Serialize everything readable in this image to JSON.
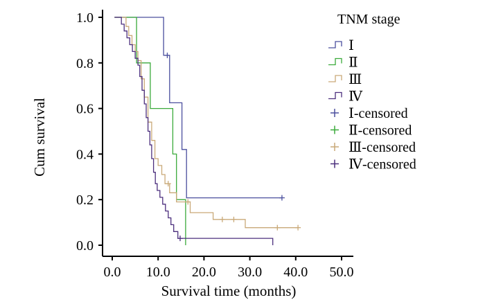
{
  "chart_data": {
    "type": "line",
    "subtype": "kaplan-meier",
    "xlabel": "Survival time (months)",
    "ylabel": "Cum survival",
    "xlim": [
      0,
      50
    ],
    "ylim": [
      0,
      1
    ],
    "x_ticks": [
      0,
      10,
      20,
      30,
      40,
      50
    ],
    "x_tick_labels": [
      "0.0",
      "10.0",
      "20.0",
      "30.0",
      "40.0",
      "50.0"
    ],
    "y_ticks": [
      0,
      0.2,
      0.4,
      0.6,
      0.8,
      1.0
    ],
    "y_tick_labels": [
      "0.0",
      "0.2",
      "0.4",
      "0.6",
      "0.8",
      "1.0"
    ],
    "grid": false,
    "legend": {
      "title": "TNM stage",
      "position": "top-right",
      "entries": [
        "Ⅰ",
        "Ⅱ",
        "Ⅲ",
        "Ⅳ",
        "Ⅰ-censored",
        "Ⅱ-censored",
        "Ⅲ-censored",
        "Ⅳ-censored"
      ]
    },
    "series": [
      {
        "name": "Ⅰ",
        "color": "#4a4f9e",
        "steps": [
          [
            0.5,
            1.0
          ],
          [
            11.2,
            1.0
          ],
          [
            11.2,
            0.833
          ],
          [
            12.5,
            0.833
          ],
          [
            12.5,
            0.625
          ],
          [
            15.2,
            0.625
          ],
          [
            15.2,
            0.42
          ],
          [
            16.2,
            0.42
          ],
          [
            16.2,
            0.208
          ],
          [
            37,
            0.208
          ]
        ],
        "censored": [
          [
            12.0,
            0.833
          ],
          [
            37,
            0.208
          ]
        ]
      },
      {
        "name": "Ⅱ",
        "color": "#3aaa3a",
        "steps": [
          [
            0.5,
            1.0
          ],
          [
            5.3,
            1.0
          ],
          [
            5.3,
            0.8
          ],
          [
            8.3,
            0.8
          ],
          [
            8.3,
            0.6
          ],
          [
            13.2,
            0.6
          ],
          [
            13.2,
            0.4
          ],
          [
            14.0,
            0.4
          ],
          [
            14.0,
            0.2
          ],
          [
            16.0,
            0.2
          ],
          [
            16.0,
            0.0
          ]
        ],
        "censored": []
      },
      {
        "name": "Ⅲ",
        "color": "#c9a978",
        "steps": [
          [
            0.5,
            1.0
          ],
          [
            3.0,
            1.0
          ],
          [
            3.0,
            0.96
          ],
          [
            3.6,
            0.96
          ],
          [
            3.6,
            0.92
          ],
          [
            4.3,
            0.92
          ],
          [
            4.3,
            0.88
          ],
          [
            5.0,
            0.88
          ],
          [
            5.0,
            0.85
          ],
          [
            5.6,
            0.85
          ],
          [
            5.6,
            0.81
          ],
          [
            6.3,
            0.81
          ],
          [
            6.3,
            0.73
          ],
          [
            7.0,
            0.73
          ],
          [
            7.0,
            0.65
          ],
          [
            7.8,
            0.65
          ],
          [
            7.8,
            0.54
          ],
          [
            8.6,
            0.54
          ],
          [
            8.6,
            0.46
          ],
          [
            9.3,
            0.46
          ],
          [
            9.3,
            0.38
          ],
          [
            10.0,
            0.38
          ],
          [
            10.0,
            0.35
          ],
          [
            10.8,
            0.35
          ],
          [
            10.8,
            0.31
          ],
          [
            11.5,
            0.31
          ],
          [
            11.5,
            0.27
          ],
          [
            12.5,
            0.27
          ],
          [
            12.5,
            0.23
          ],
          [
            14.0,
            0.23
          ],
          [
            14.0,
            0.19
          ],
          [
            17.0,
            0.19
          ],
          [
            17.0,
            0.143
          ],
          [
            22.0,
            0.143
          ],
          [
            22.0,
            0.113
          ],
          [
            29.0,
            0.113
          ],
          [
            29.0,
            0.077
          ],
          [
            40.5,
            0.077
          ]
        ],
        "censored": [
          [
            12.2,
            0.27
          ],
          [
            16.5,
            0.19
          ],
          [
            24.0,
            0.113
          ],
          [
            26.5,
            0.113
          ],
          [
            36.0,
            0.077
          ],
          [
            40.5,
            0.077
          ]
        ]
      },
      {
        "name": "Ⅳ",
        "color": "#4b2e7d",
        "steps": [
          [
            0.5,
            1.0
          ],
          [
            2.0,
            1.0
          ],
          [
            2.0,
            0.97
          ],
          [
            2.6,
            0.97
          ],
          [
            2.6,
            0.94
          ],
          [
            3.2,
            0.94
          ],
          [
            3.2,
            0.91
          ],
          [
            3.8,
            0.91
          ],
          [
            3.8,
            0.88
          ],
          [
            4.4,
            0.88
          ],
          [
            4.4,
            0.85
          ],
          [
            5.0,
            0.85
          ],
          [
            5.0,
            0.82
          ],
          [
            5.6,
            0.82
          ],
          [
            5.6,
            0.79
          ],
          [
            6.0,
            0.79
          ],
          [
            6.0,
            0.74
          ],
          [
            6.5,
            0.74
          ],
          [
            6.5,
            0.68
          ],
          [
            7.0,
            0.68
          ],
          [
            7.0,
            0.62
          ],
          [
            7.4,
            0.62
          ],
          [
            7.4,
            0.56
          ],
          [
            7.8,
            0.56
          ],
          [
            7.8,
            0.5
          ],
          [
            8.2,
            0.5
          ],
          [
            8.2,
            0.44
          ],
          [
            8.6,
            0.44
          ],
          [
            8.6,
            0.38
          ],
          [
            9.0,
            0.38
          ],
          [
            9.0,
            0.32
          ],
          [
            9.4,
            0.32
          ],
          [
            9.4,
            0.27
          ],
          [
            9.8,
            0.27
          ],
          [
            9.8,
            0.24
          ],
          [
            10.4,
            0.24
          ],
          [
            10.4,
            0.21
          ],
          [
            11.0,
            0.21
          ],
          [
            11.0,
            0.18
          ],
          [
            11.6,
            0.18
          ],
          [
            11.6,
            0.15
          ],
          [
            12.2,
            0.15
          ],
          [
            12.2,
            0.12
          ],
          [
            12.8,
            0.12
          ],
          [
            12.8,
            0.09
          ],
          [
            13.4,
            0.09
          ],
          [
            13.4,
            0.06
          ],
          [
            14.3,
            0.06
          ],
          [
            14.3,
            0.03
          ],
          [
            35.0,
            0.03
          ],
          [
            35.0,
            0.0
          ]
        ],
        "censored": [
          [
            14.8,
            0.03
          ]
        ]
      }
    ]
  }
}
